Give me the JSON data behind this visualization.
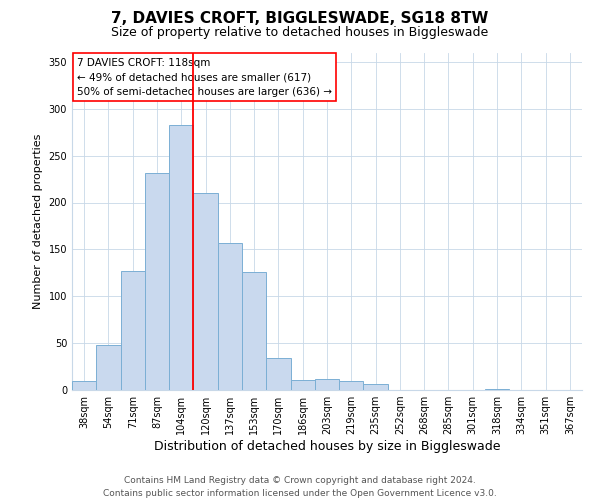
{
  "title": "7, DAVIES CROFT, BIGGLESWADE, SG18 8TW",
  "subtitle": "Size of property relative to detached houses in Biggleswade",
  "xlabel": "Distribution of detached houses by size in Biggleswade",
  "ylabel": "Number of detached properties",
  "bin_labels": [
    "38sqm",
    "54sqm",
    "71sqm",
    "87sqm",
    "104sqm",
    "120sqm",
    "137sqm",
    "153sqm",
    "170sqm",
    "186sqm",
    "203sqm",
    "219sqm",
    "235sqm",
    "252sqm",
    "268sqm",
    "285sqm",
    "301sqm",
    "318sqm",
    "334sqm",
    "351sqm",
    "367sqm"
  ],
  "bar_heights": [
    10,
    48,
    127,
    231,
    283,
    210,
    157,
    126,
    34,
    11,
    12,
    10,
    6,
    0,
    0,
    0,
    0,
    1,
    0,
    0,
    0
  ],
  "bar_color": "#c9d9ee",
  "bar_edge_color": "#7bafd4",
  "vline_color": "red",
  "annotation_title": "7 DAVIES CROFT: 118sqm",
  "annotation_line1": "← 49% of detached houses are smaller (617)",
  "annotation_line2": "50% of semi-detached houses are larger (636) →",
  "annotation_box_color": "#ffffff",
  "annotation_box_edge": "red",
  "ylim": [
    0,
    360
  ],
  "yticks": [
    0,
    50,
    100,
    150,
    200,
    250,
    300,
    350
  ],
  "footer1": "Contains HM Land Registry data © Crown copyright and database right 2024.",
  "footer2": "Contains public sector information licensed under the Open Government Licence v3.0.",
  "title_fontsize": 11,
  "subtitle_fontsize": 9,
  "xlabel_fontsize": 9,
  "ylabel_fontsize": 8,
  "tick_fontsize": 7,
  "annot_fontsize": 7.5,
  "footer_fontsize": 6.5
}
